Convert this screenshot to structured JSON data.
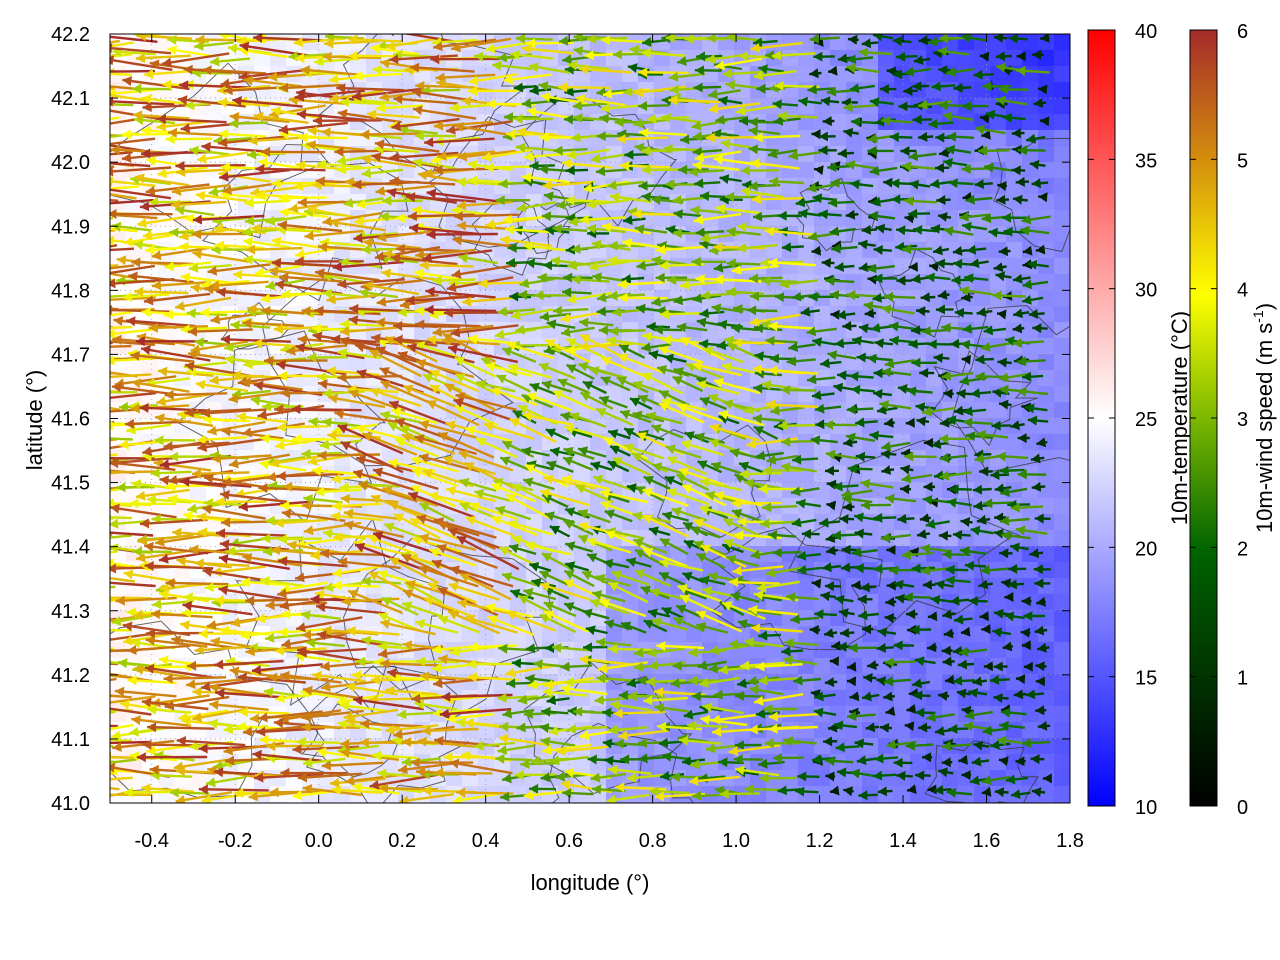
{
  "chart_data": {
    "type": "heatmap",
    "xlabel": "longitude (°)",
    "ylabel": "latitude (°)",
    "xlim": [
      -0.5,
      1.8
    ],
    "ylim": [
      41.0,
      42.2
    ],
    "x_ticks": [
      "-0.4",
      "-0.2",
      "0.0",
      "0.2",
      "0.4",
      "0.6",
      "0.8",
      "1.0",
      "1.2",
      "1.4",
      "1.6",
      "1.8"
    ],
    "y_ticks": [
      "41.0",
      "41.1",
      "41.2",
      "41.3",
      "41.4",
      "41.5",
      "41.6",
      "41.7",
      "41.8",
      "41.9",
      "42.0",
      "42.1",
      "42.2"
    ],
    "grid": "dotted",
    "legend": "none",
    "temperature_colorbar": {
      "label": "10m-temperature (°C)",
      "range": [
        10,
        40
      ],
      "ticks": [
        "10",
        "15",
        "20",
        "25",
        "30",
        "35",
        "40"
      ],
      "colors": [
        "#0000ff",
        "#ffffff",
        "#ff0000"
      ]
    },
    "wind_colorbar": {
      "label_main": "10m-wind speed (m s",
      "label_sup": "-1",
      "label_end": ")",
      "range": [
        0,
        6
      ],
      "ticks": [
        "0",
        "1",
        "2",
        "3",
        "4",
        "5",
        "6"
      ],
      "colors": [
        "#000000",
        "#006400",
        "#7cb800",
        "#ffff00",
        "#d4900c",
        "#a52a2a"
      ]
    },
    "layers": {
      "temperature_field": "10m-temperature (°C), range 10–40",
      "wind_vectors": "10m-wind speed (m s-1), range 0–6",
      "contours": "terrain"
    }
  }
}
